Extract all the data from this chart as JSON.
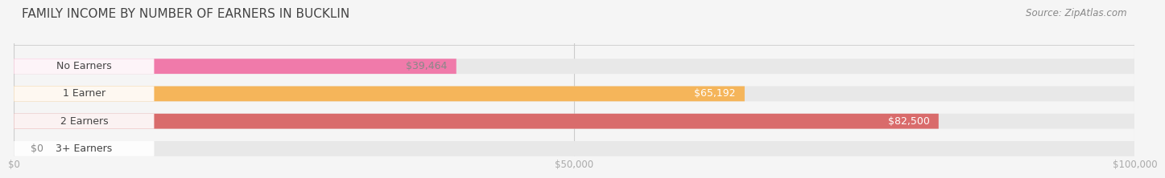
{
  "title": "FAMILY INCOME BY NUMBER OF EARNERS IN BUCKLIN",
  "source": "Source: ZipAtlas.com",
  "categories": [
    "No Earners",
    "1 Earner",
    "2 Earners",
    "3+ Earners"
  ],
  "values": [
    39464,
    65192,
    82500,
    0
  ],
  "bar_colors": [
    "#f07aaa",
    "#f5b55a",
    "#d96b6b",
    "#a8c4e0"
  ],
  "value_labels": [
    "$39,464",
    "$65,192",
    "$82,500",
    "$0"
  ],
  "value_label_colors": [
    "#888888",
    "#ffffff",
    "#ffffff",
    "#888888"
  ],
  "xlim": [
    0,
    100000
  ],
  "xticks": [
    0,
    50000,
    100000
  ],
  "xticklabels": [
    "$0",
    "$50,000",
    "$100,000"
  ],
  "background_color": "#f5f5f5",
  "track_color": "#e8e8e8",
  "title_fontsize": 11,
  "source_fontsize": 8.5,
  "label_fontsize": 9,
  "value_fontsize": 9
}
